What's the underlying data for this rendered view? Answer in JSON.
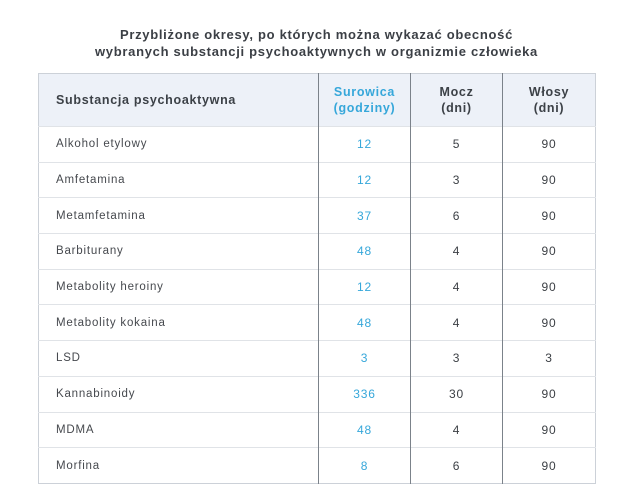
{
  "header": {
    "title_lines": [
      "Przybliżone okresy, po których można wykazać obecność",
      "wybranych substancji psychoaktywnych w organizmie człowieka"
    ]
  },
  "colors": {
    "accent_serum": "#36a7da",
    "header_bg": "#edf1f8",
    "vertical_border": "#7b828a",
    "horizontal_border": "#e0e3e7",
    "text": "#46494e"
  },
  "table": {
    "header": {
      "substance": "Substancja psychoaktywna",
      "serum_line1": "Surowica",
      "serum_line2": "(godziny)",
      "urine_line1": "Mocz",
      "urine_line2": "(dni)",
      "hair_line1": "Włosy",
      "hair_line2": "(dni)"
    },
    "rows": [
      {
        "substance": "Alkohol etylowy",
        "serum": "12",
        "urine": "5",
        "hair": "90"
      },
      {
        "substance": "Amfetamina",
        "serum": "12",
        "urine": "3",
        "hair": "90"
      },
      {
        "substance": "Metamfetamina",
        "serum": "37",
        "urine": "6",
        "hair": "90"
      },
      {
        "substance": "Barbiturany",
        "serum": "48",
        "urine": "4",
        "hair": "90"
      },
      {
        "substance": "Metabolity heroiny",
        "serum": "12",
        "urine": "4",
        "hair": "90"
      },
      {
        "substance": "Metabolity kokaina",
        "serum": "48",
        "urine": "4",
        "hair": "90"
      },
      {
        "substance": "LSD",
        "serum": "3",
        "urine": "3",
        "hair": "3"
      },
      {
        "substance": "Kannabinoidy",
        "serum": "336",
        "urine": "30",
        "hair": "90"
      },
      {
        "substance": "MDMA",
        "serum": "48",
        "urine": "4",
        "hair": "90"
      },
      {
        "substance": "Morfina",
        "serum": "8",
        "urine": "6",
        "hair": "90"
      }
    ]
  },
  "chart_data": {
    "type": "table",
    "title": "Przybliżone okresy, po których można wykazać obecność wybranych substancji psychoaktywnych w organizmie człowieka",
    "columns": [
      "Substancja psychoaktywna",
      "Surowica (godziny)",
      "Mocz (dni)",
      "Włosy (dni)"
    ],
    "rows": [
      [
        "Alkohol etylowy",
        12,
        5,
        90
      ],
      [
        "Amfetamina",
        12,
        3,
        90
      ],
      [
        "Metamfetamina",
        37,
        6,
        90
      ],
      [
        "Barbiturany",
        48,
        4,
        90
      ],
      [
        "Metabolity heroiny",
        12,
        4,
        90
      ],
      [
        "Metabolity kokaina",
        48,
        4,
        90
      ],
      [
        "LSD",
        3,
        3,
        3
      ],
      [
        "Kannabinoidy",
        336,
        30,
        90
      ],
      [
        "MDMA",
        48,
        4,
        90
      ],
      [
        "Morfina",
        8,
        6,
        90
      ]
    ],
    "accent_color": "#36a7da",
    "layout": "header row shaded light blue-gray; serum column text in accent blue; dark vertical column separators; light horizontal row separators"
  }
}
